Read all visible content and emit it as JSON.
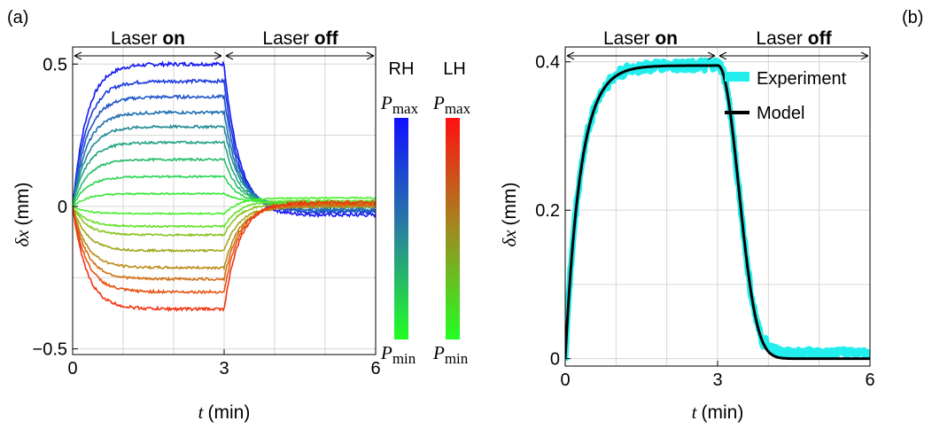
{
  "chart_data": [
    {
      "type": "line",
      "panel_label": "(a)",
      "xlabel_var": "t",
      "xlabel_unit": "(min)",
      "ylabel_var": "δx",
      "ylabel_unit": "(mm)",
      "xlim": [
        0,
        6
      ],
      "ylim": [
        -0.52,
        0.56
      ],
      "xticks": [
        0,
        3,
        6
      ],
      "yticks": [
        -0.5,
        0,
        0.5
      ],
      "ytick_labels": [
        "−0.5",
        "0",
        "0.5"
      ],
      "grid": true,
      "phase_on": {
        "prefix": "Laser ",
        "bold": "on",
        "range": [
          0,
          3
        ]
      },
      "phase_off": {
        "prefix": "Laser ",
        "bold": "off",
        "range": [
          3,
          6
        ]
      },
      "colorbars": [
        {
          "label": "RH",
          "color": "#1a1aff",
          "max_label": "P",
          "max_sub": "max",
          "min_label": "P",
          "min_sub": "min",
          "top_color": "#1010ff",
          "bottom_color": "#22ff22"
        },
        {
          "label": "LH",
          "color": "#ff2020",
          "max_label": "P",
          "max_sub": "max",
          "min_label": "P",
          "min_sub": "min",
          "top_color": "#ff1010",
          "bottom_color": "#22ff22"
        }
      ],
      "series": [
        {
          "plateau": 0.5,
          "final": -0.03,
          "color": "#1616f4"
        },
        {
          "plateau": 0.44,
          "final": -0.02,
          "color": "#1b3bde"
        },
        {
          "plateau": 0.385,
          "final": -0.015,
          "color": "#1f55c8"
        },
        {
          "plateau": 0.33,
          "final": -0.01,
          "color": "#2070b0"
        },
        {
          "plateau": 0.28,
          "final": 0.0,
          "color": "#228a98"
        },
        {
          "plateau": 0.225,
          "final": 0.0,
          "color": "#24a482"
        },
        {
          "plateau": 0.165,
          "final": 0.005,
          "color": "#26bd6a"
        },
        {
          "plateau": 0.105,
          "final": 0.01,
          "color": "#2ad652"
        },
        {
          "plateau": 0.045,
          "final": 0.015,
          "color": "#38e83c"
        },
        {
          "plateau": -0.025,
          "final": 0.03,
          "color": "#4cf030"
        },
        {
          "plateau": -0.07,
          "final": 0.02,
          "color": "#66e028"
        },
        {
          "plateau": -0.1,
          "final": 0.01,
          "color": "#88c422"
        },
        {
          "plateau": -0.155,
          "final": 0.0,
          "color": "#a2a81e"
        },
        {
          "plateau": -0.215,
          "final": 0.0,
          "color": "#bc8c1a"
        },
        {
          "plateau": -0.255,
          "final": 0.005,
          "color": "#d27016"
        },
        {
          "plateau": -0.3,
          "final": 0.01,
          "color": "#e65212"
        },
        {
          "plateau": -0.36,
          "final": 0.015,
          "color": "#f2320e"
        }
      ]
    },
    {
      "type": "line",
      "panel_label": "(b)",
      "xlabel_var": "t",
      "xlabel_unit": "(min)",
      "ylabel_var": "δx",
      "ylabel_unit": "(mm)",
      "xlim": [
        0,
        6
      ],
      "ylim": [
        -0.01,
        0.42
      ],
      "xticks": [
        0,
        3,
        6
      ],
      "yticks": [
        0,
        0.2,
        0.4
      ],
      "ytick_labels": [
        "0",
        "0.2",
        "0.4"
      ],
      "grid": true,
      "phase_on": {
        "prefix": "Laser ",
        "bold": "on",
        "range": [
          0,
          3
        ]
      },
      "phase_off": {
        "prefix": "Laser ",
        "bold": "off",
        "range": [
          3,
          6
        ]
      },
      "legend": {
        "placement": "top-right",
        "entries": [
          "Experiment",
          "Model"
        ]
      },
      "series": [
        {
          "name": "Experiment",
          "color": "#22eeee",
          "plateau": 0.395,
          "baseline": 0.0
        },
        {
          "name": "Model",
          "color": "#000000",
          "plateau": 0.395,
          "baseline": 0.0
        }
      ]
    }
  ]
}
